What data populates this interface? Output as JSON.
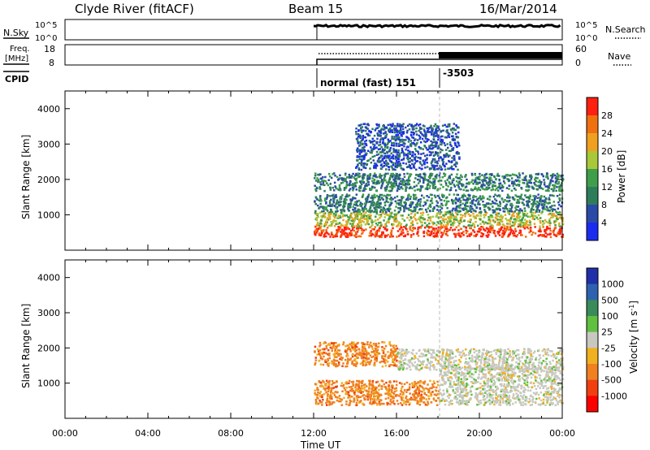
{
  "header": {
    "station": "Clyde River (fitACF)",
    "beam": "Beam 15",
    "date": "16/Mar/2014"
  },
  "top_panels": {
    "nsky": {
      "label": "N.Sky",
      "tick_hi": "10^5",
      "tick_lo": "10^0",
      "right_label": "N.Search"
    },
    "freq": {
      "label_line1": "Freq.",
      "label_line2": "[MHz]",
      "tick_hi": "18",
      "tick_lo": "8",
      "right_tick_hi": "60",
      "right_tick_lo": "0",
      "right_label": "Nave"
    },
    "cpid": {
      "label": "CPID",
      "mode1": "normal (fast) 151",
      "mode2": "-3503"
    }
  },
  "power_panel": {
    "ylabel": "Slant Range [km]",
    "colorbar_label": "Power [dB]",
    "colorbar_ticks": [
      "4",
      "8",
      "12",
      "16",
      "20",
      "24",
      "28"
    ],
    "colors": [
      "#1a2cf0",
      "#2b4aa8",
      "#2e7d5a",
      "#3f9e4a",
      "#a8c83a",
      "#f0a020",
      "#f07010",
      "#ff2010"
    ]
  },
  "velocity_panel": {
    "ylabel": "Slant Range [km]",
    "colorbar_label": "Velocity [m s",
    "colorbar_label_sup": "-1",
    "colorbar_label_tail": "]",
    "colorbar_ticks": [
      "1000",
      "500",
      "100",
      "25",
      "-25",
      "-100",
      "-500",
      "-1000"
    ],
    "colors": [
      "#2030a8",
      "#2e62b0",
      "#3a8a5a",
      "#60c040",
      "#c8c8c0",
      "#f0b020",
      "#f08020",
      "#f04010",
      "#ff0000"
    ]
  },
  "xaxis": {
    "label": "Time UT",
    "ticks": [
      "00:00",
      "04:00",
      "08:00",
      "12:00",
      "16:00",
      "20:00",
      "00:00"
    ]
  },
  "chart_data": [
    {
      "type": "heatmap",
      "title": "Power",
      "xlabel": "Time UT",
      "ylabel": "Slant Range [km]",
      "xlim_hours": [
        0,
        24
      ],
      "ylim": [
        0,
        4500
      ],
      "yticks": [
        1000,
        2000,
        3000,
        4000
      ],
      "colorbar": {
        "label": "Power [dB]",
        "ticks": [
          4,
          8,
          12,
          16,
          20,
          24,
          28
        ]
      },
      "data_start_hour": 12,
      "mode_change_hour": 18,
      "bands": [
        {
          "range_km": [
            400,
            700
          ],
          "hours": [
            12,
            24
          ],
          "value_db": 28
        },
        {
          "range_km": [
            700,
            1100
          ],
          "hours": [
            12,
            24
          ],
          "value_db": 16
        },
        {
          "range_km": [
            1100,
            1600
          ],
          "hours": [
            12,
            24
          ],
          "value_db": 8
        },
        {
          "range_km": [
            1700,
            2200
          ],
          "hours": [
            12,
            24
          ],
          "value_db": 8
        },
        {
          "range_km": [
            2300,
            3600
          ],
          "hours": [
            14,
            19
          ],
          "value_db": 4
        }
      ]
    },
    {
      "type": "heatmap",
      "title": "Velocity",
      "xlabel": "Time UT",
      "ylabel": "Slant Range [km]",
      "xlim_hours": [
        0,
        24
      ],
      "ylim": [
        0,
        4500
      ],
      "yticks": [
        1000,
        2000,
        3000,
        4000
      ],
      "colorbar": {
        "label": "Velocity [m s-1]",
        "ticks": [
          1000,
          500,
          100,
          25,
          -25,
          -100,
          -500,
          -1000
        ]
      },
      "data_start_hour": 12,
      "bands": [
        {
          "range_km": [
            400,
            1100
          ],
          "hours": [
            12,
            18
          ],
          "value_ms": -100
        },
        {
          "range_km": [
            400,
            1500
          ],
          "hours": [
            18,
            24
          ],
          "value_ms": 0
        },
        {
          "range_km": [
            1500,
            2200
          ],
          "hours": [
            12,
            16
          ],
          "value_ms": -100
        },
        {
          "range_km": [
            1400,
            2000
          ],
          "hours": [
            16,
            24
          ],
          "value_ms": 0
        }
      ]
    }
  ]
}
